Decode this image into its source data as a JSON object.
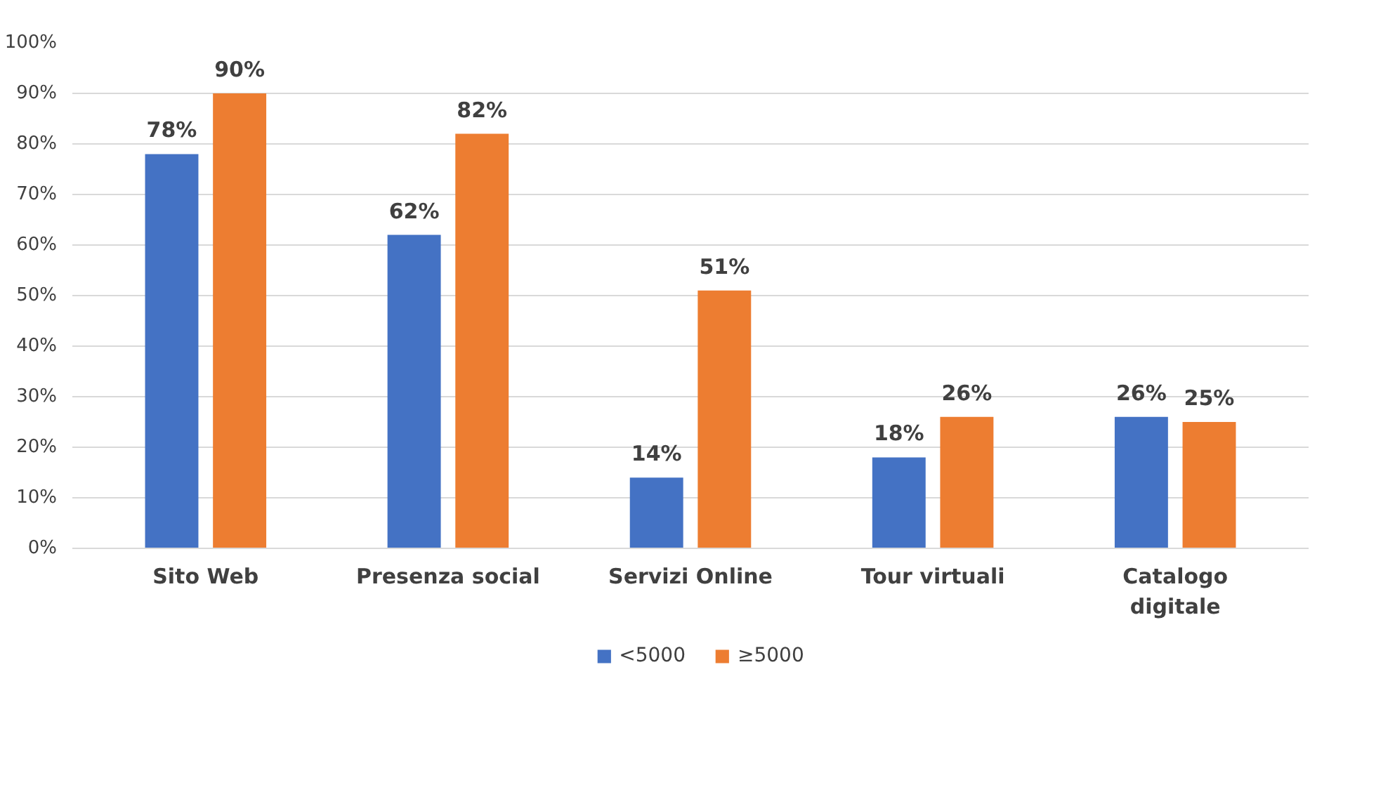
{
  "chart_data": {
    "type": "bar",
    "categories": [
      "Sito Web",
      "Presenza social",
      "Servizi Online",
      "Tour virtuali",
      "Catalogo digitale"
    ],
    "series": [
      {
        "name": "<5000",
        "color": "#4472c4",
        "values": [
          78,
          62,
          14,
          18,
          26
        ],
        "value_labels": [
          "78%",
          "62%",
          "14%",
          "18%",
          "26%"
        ]
      },
      {
        "name": "≥5000",
        "color": "#ed7d31",
        "values": [
          90,
          82,
          51,
          26,
          25
        ],
        "value_labels": [
          "90%",
          "82%",
          "51%",
          "26%",
          "25%"
        ]
      }
    ],
    "ylim": [
      0,
      100
    ],
    "yticks": [
      {
        "value": 0,
        "label": "0%"
      },
      {
        "value": 10,
        "label": "10%"
      },
      {
        "value": 20,
        "label": "20%"
      },
      {
        "value": 30,
        "label": "30%"
      },
      {
        "value": 40,
        "label": "40%"
      },
      {
        "value": 50,
        "label": "50%"
      },
      {
        "value": 60,
        "label": "60%"
      },
      {
        "value": 70,
        "label": "70%"
      },
      {
        "value": 80,
        "label": "80%"
      },
      {
        "value": 90,
        "label": "90%"
      },
      {
        "value": 100,
        "label": "100%"
      }
    ],
    "grid": "y",
    "legend": "bottom"
  }
}
